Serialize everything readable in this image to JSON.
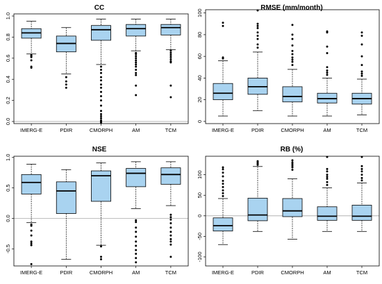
{
  "figure": {
    "colors": {
      "box_fill": "#a9d3f0",
      "stroke": "#000000",
      "outlier": "#000000",
      "zero_line": "#a8a8a8"
    },
    "zero_line_at": 0
  },
  "chart_data": [
    {
      "type": "box",
      "title": "CC",
      "categories": [
        "IMERG-E",
        "PDIR",
        "CMORPH",
        "AM",
        "TCM"
      ],
      "ylim": [
        -0.02,
        1.02
      ],
      "yticks": [
        0,
        0.2,
        0.4,
        0.6,
        0.8,
        1
      ],
      "ytick_labels": [
        "0.0",
        "0.2",
        "0.4",
        "0.6",
        "0.8",
        "1.0"
      ],
      "zero_line": true,
      "series": [
        {
          "name": "IMERG-E",
          "whisker_low": 0.64,
          "q1": 0.79,
          "median": 0.84,
          "q3": 0.88,
          "whisker_high": 0.95,
          "outliers": [
            0.63,
            0.62,
            0.61,
            0.58,
            0.52,
            0.51
          ]
        },
        {
          "name": "PDIR",
          "whisker_low": 0.45,
          "q1": 0.66,
          "median": 0.74,
          "q3": 0.81,
          "whisker_high": 0.89,
          "outliers": [
            0.42,
            0.38,
            0.35,
            0.32
          ]
        },
        {
          "name": "CMORPH",
          "whisker_low": 0.54,
          "q1": 0.77,
          "median": 0.87,
          "q3": 0.91,
          "whisker_high": 0.97,
          "outliers": [
            0.52,
            0.49,
            0.46,
            0.42,
            0.39,
            0.35,
            0.32,
            0.28,
            0.24,
            0.2,
            0.15,
            0.1,
            0.07,
            0.05,
            0.03,
            0.01,
            0.0,
            -0.01
          ]
        },
        {
          "name": "AM",
          "whisker_low": 0.67,
          "q1": 0.81,
          "median": 0.88,
          "q3": 0.92,
          "whisker_high": 0.97,
          "outliers": [
            0.65,
            0.64,
            0.62,
            0.6,
            0.58,
            0.56,
            0.54,
            0.52,
            0.49,
            0.46,
            0.44,
            0.34,
            0.25
          ]
        },
        {
          "name": "TCM",
          "whisker_low": 0.68,
          "q1": 0.82,
          "median": 0.89,
          "q3": 0.92,
          "whisker_high": 0.97,
          "outliers": [
            0.67,
            0.65,
            0.63,
            0.61,
            0.59,
            0.57,
            0.56,
            0.34,
            0.23
          ]
        }
      ]
    },
    {
      "type": "box",
      "title": "RMSE (mm/month)",
      "categories": [
        "IMERG-E",
        "PDIR",
        "CMORPH",
        "AM",
        "TCM"
      ],
      "ylim": [
        -2,
        103
      ],
      "yticks": [
        0,
        20,
        40,
        60,
        80,
        100
      ],
      "ytick_labels": [
        "0",
        "20",
        "40",
        "60",
        "80",
        "100"
      ],
      "zero_line": false,
      "series": [
        {
          "name": "IMERG-E",
          "whisker_low": 5,
          "q1": 20,
          "median": 26,
          "q3": 35,
          "whisker_high": 56,
          "outliers": [
            58,
            59,
            88,
            91
          ]
        },
        {
          "name": "PDIR",
          "whisker_low": 10,
          "q1": 25,
          "median": 32,
          "q3": 40,
          "whisker_high": 64,
          "outliers": [
            68,
            71,
            76,
            79,
            82,
            86,
            88,
            90,
            104
          ]
        },
        {
          "name": "CMORPH",
          "whisker_low": 5,
          "q1": 18,
          "median": 23,
          "q3": 32,
          "whisker_high": 48,
          "outliers": [
            52,
            55,
            57,
            59,
            62,
            65,
            70,
            76,
            80,
            89
          ]
        },
        {
          "name": "AM",
          "whisker_low": 5,
          "q1": 17,
          "median": 21,
          "q3": 26,
          "whisker_high": 40,
          "outliers": [
            43,
            45,
            47,
            50,
            63,
            69,
            82,
            83
          ]
        },
        {
          "name": "TCM",
          "whisker_low": 6,
          "q1": 16,
          "median": 21,
          "q3": 26,
          "whisker_high": 39,
          "outliers": [
            42,
            44,
            46,
            52,
            60,
            71,
            79,
            82
          ]
        }
      ]
    },
    {
      "type": "box",
      "title": "NSE",
      "categories": [
        "IMERG-E",
        "PDIR",
        "CMORPH",
        "AM",
        "TCM"
      ],
      "ylim": [
        -0.78,
        1.02
      ],
      "yticks": [
        -0.5,
        0,
        0.5,
        1
      ],
      "ytick_labels": [
        "-0.5",
        "0.0",
        "0.5",
        "1.0"
      ],
      "zero_line": true,
      "series": [
        {
          "name": "IMERG-E",
          "whisker_low": -0.07,
          "q1": 0.4,
          "median": 0.59,
          "q3": 0.72,
          "whisker_high": 0.89,
          "outliers": [
            -0.1,
            -0.12,
            -0.2,
            -0.28,
            -0.38,
            -0.41,
            -0.44,
            -0.75
          ]
        },
        {
          "name": "PDIR",
          "whisker_low": -0.67,
          "q1": 0.08,
          "median": 0.45,
          "q3": 0.6,
          "whisker_high": 0.8,
          "outliers": []
        },
        {
          "name": "CMORPH",
          "whisker_low": -0.44,
          "q1": 0.28,
          "median": 0.7,
          "q3": 0.78,
          "whisker_high": 0.91,
          "outliers": [
            -0.46,
            -0.63,
            -0.67
          ]
        },
        {
          "name": "AM",
          "whisker_low": 0.16,
          "q1": 0.52,
          "median": 0.74,
          "q3": 0.82,
          "whisker_high": 0.93,
          "outliers": [
            -0.03,
            -0.06,
            -0.15,
            -0.22,
            -0.3,
            -0.38,
            -0.45,
            -0.52,
            -0.58,
            -0.65,
            -0.72
          ]
        },
        {
          "name": "TCM",
          "whisker_low": 0.21,
          "q1": 0.56,
          "median": 0.72,
          "q3": 0.83,
          "whisker_high": 0.93,
          "outliers": [
            0.06,
            0.02,
            -0.02,
            -0.08,
            -0.15,
            -0.22,
            -0.28,
            -0.34,
            -0.38,
            -0.43,
            -0.63
          ]
        }
      ]
    },
    {
      "type": "box",
      "title": "RB (%)",
      "categories": [
        "IMERG-E",
        "PDIR",
        "CMORPH",
        "AM",
        "TCM"
      ],
      "ylim": [
        -122,
        145
      ],
      "yticks": [
        -100,
        -50,
        0,
        50,
        100
      ],
      "ytick_labels": [
        "-100",
        "-50",
        "0",
        "50",
        "100"
      ],
      "zero_line": true,
      "series": [
        {
          "name": "IMERG-E",
          "whisker_low": -70,
          "q1": -37,
          "median": -24,
          "q3": -5,
          "whisker_high": 42,
          "outliers": [
            48,
            55,
            62,
            70,
            78,
            85,
            96,
            105,
            113,
            118
          ]
        },
        {
          "name": "PDIR",
          "whisker_low": -38,
          "q1": -12,
          "median": 2,
          "q3": 43,
          "whisker_high": 120,
          "outliers": [
            124,
            127,
            130,
            133
          ]
        },
        {
          "name": "CMORPH",
          "whisker_low": -57,
          "q1": -2,
          "median": 12,
          "q3": 42,
          "whisker_high": 90,
          "outliers": [
            112,
            118,
            122,
            126,
            130,
            135
          ]
        },
        {
          "name": "AM",
          "whisker_low": -38,
          "q1": -11,
          "median": -1,
          "q3": 22,
          "whisker_high": 68,
          "outliers": [
            75,
            82,
            90,
            95,
            100,
            108,
            114,
            145
          ]
        },
        {
          "name": "TCM",
          "whisker_low": -38,
          "q1": -11,
          "median": -1,
          "q3": 26,
          "whisker_high": 80,
          "outliers": [
            86,
            92,
            100,
            108,
            114,
            121,
            145
          ]
        }
      ]
    }
  ]
}
